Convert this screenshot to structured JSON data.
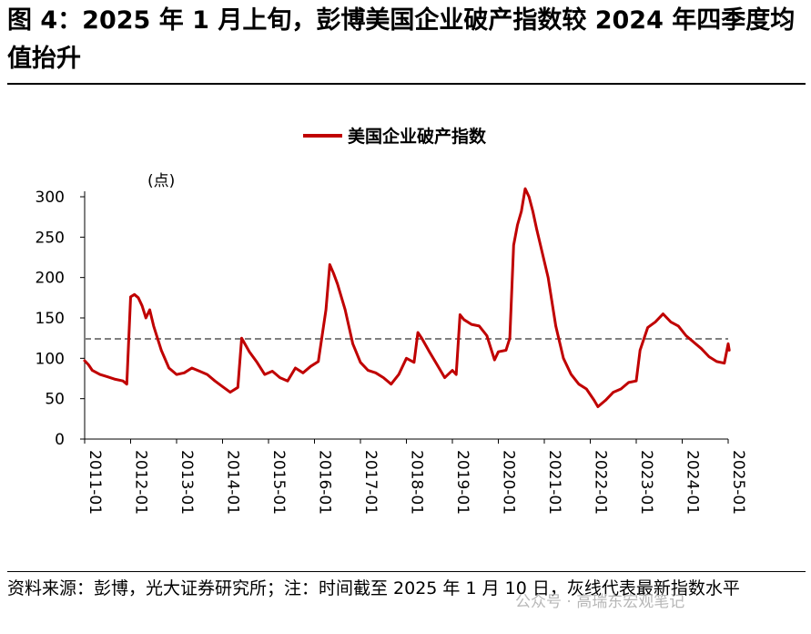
{
  "header": {
    "title": "图 4：2025 年 1 月上旬，彭博美国企业破产指数较 2024 年四季度均值抬升"
  },
  "footer": {
    "source": "资料来源：彭博，光大证券研究所；注：时间截至 2025 年 1 月 10 日，灰线代表最新指数水平"
  },
  "watermark": {
    "text": "公众号 · 高瑞东宏观笔记"
  },
  "colors": {
    "series": "#c00000",
    "reference_line": "#808080"
  },
  "chart_data": {
    "type": "line",
    "title": "",
    "ylabel": "(点)",
    "ylim": [
      0,
      300
    ],
    "yticks": [
      "0",
      "50",
      "100",
      "150",
      "200",
      "250",
      "300"
    ],
    "xticks": [
      "2011-01",
      "2012-01",
      "2013-01",
      "2014-01",
      "2015-01",
      "2016-01",
      "2017-01",
      "2018-01",
      "2019-01",
      "2020-01",
      "2021-01",
      "2022-01",
      "2023-01",
      "2024-01",
      "2025-01"
    ],
    "legend": "top-center",
    "grid": false,
    "reference_line": {
      "value": 124,
      "style": "dashed"
    },
    "series": [
      {
        "name": "美国企业破产指数",
        "points": [
          [
            "2011-01",
            97
          ],
          [
            "2011-02",
            92
          ],
          [
            "2011-03",
            85
          ],
          [
            "2011-05",
            80
          ],
          [
            "2011-07",
            77
          ],
          [
            "2011-09",
            74
          ],
          [
            "2011-11",
            72
          ],
          [
            "2011-12",
            68
          ],
          [
            "2012-01",
            176
          ],
          [
            "2012-02",
            179
          ],
          [
            "2012-03",
            175
          ],
          [
            "2012-04",
            165
          ],
          [
            "2012-05",
            150
          ],
          [
            "2012-06",
            160
          ],
          [
            "2012-07",
            140
          ],
          [
            "2012-09",
            110
          ],
          [
            "2012-11",
            88
          ],
          [
            "2013-01",
            80
          ],
          [
            "2013-03",
            82
          ],
          [
            "2013-05",
            88
          ],
          [
            "2013-07",
            84
          ],
          [
            "2013-09",
            80
          ],
          [
            "2013-11",
            72
          ],
          [
            "2014-01",
            65
          ],
          [
            "2014-03",
            58
          ],
          [
            "2014-05",
            64
          ],
          [
            "2014-06",
            125
          ],
          [
            "2014-08",
            108
          ],
          [
            "2014-10",
            95
          ],
          [
            "2014-12",
            80
          ],
          [
            "2015-02",
            84
          ],
          [
            "2015-04",
            76
          ],
          [
            "2015-06",
            72
          ],
          [
            "2015-08",
            88
          ],
          [
            "2015-10",
            82
          ],
          [
            "2015-12",
            90
          ],
          [
            "2016-02",
            96
          ],
          [
            "2016-04",
            160
          ],
          [
            "2016-05",
            216
          ],
          [
            "2016-06",
            205
          ],
          [
            "2016-07",
            192
          ],
          [
            "2016-09",
            160
          ],
          [
            "2016-11",
            118
          ],
          [
            "2017-01",
            95
          ],
          [
            "2017-03",
            85
          ],
          [
            "2017-05",
            82
          ],
          [
            "2017-07",
            76
          ],
          [
            "2017-09",
            68
          ],
          [
            "2017-11",
            80
          ],
          [
            "2018-01",
            100
          ],
          [
            "2018-03",
            95
          ],
          [
            "2018-04",
            132
          ],
          [
            "2018-05",
            125
          ],
          [
            "2018-07",
            108
          ],
          [
            "2018-09",
            92
          ],
          [
            "2018-11",
            76
          ],
          [
            "2019-01",
            85
          ],
          [
            "2019-02",
            80
          ],
          [
            "2019-03",
            154
          ],
          [
            "2019-04",
            148
          ],
          [
            "2019-06",
            142
          ],
          [
            "2019-08",
            140
          ],
          [
            "2019-10",
            128
          ],
          [
            "2019-12",
            98
          ],
          [
            "2020-01",
            108
          ],
          [
            "2020-03",
            110
          ],
          [
            "2020-04",
            125
          ],
          [
            "2020-05",
            240
          ],
          [
            "2020-06",
            265
          ],
          [
            "2020-07",
            282
          ],
          [
            "2020-08",
            310
          ],
          [
            "2020-09",
            300
          ],
          [
            "2020-10",
            282
          ],
          [
            "2020-11",
            260
          ],
          [
            "2020-12",
            240
          ],
          [
            "2021-02",
            200
          ],
          [
            "2021-04",
            140
          ],
          [
            "2021-06",
            100
          ],
          [
            "2021-08",
            80
          ],
          [
            "2021-10",
            68
          ],
          [
            "2021-12",
            62
          ],
          [
            "2022-02",
            48
          ],
          [
            "2022-03",
            40
          ],
          [
            "2022-05",
            48
          ],
          [
            "2022-07",
            58
          ],
          [
            "2022-09",
            62
          ],
          [
            "2022-11",
            70
          ],
          [
            "2023-01",
            72
          ],
          [
            "2023-02",
            110
          ],
          [
            "2023-04",
            138
          ],
          [
            "2023-06",
            145
          ],
          [
            "2023-08",
            155
          ],
          [
            "2023-10",
            145
          ],
          [
            "2023-12",
            140
          ],
          [
            "2024-02",
            128
          ],
          [
            "2024-04",
            120
          ],
          [
            "2024-06",
            112
          ],
          [
            "2024-08",
            102
          ],
          [
            "2024-10",
            96
          ],
          [
            "2024-12",
            94
          ],
          [
            "2025-01",
            118
          ],
          [
            "2025-01-10",
            110
          ]
        ]
      }
    ]
  }
}
